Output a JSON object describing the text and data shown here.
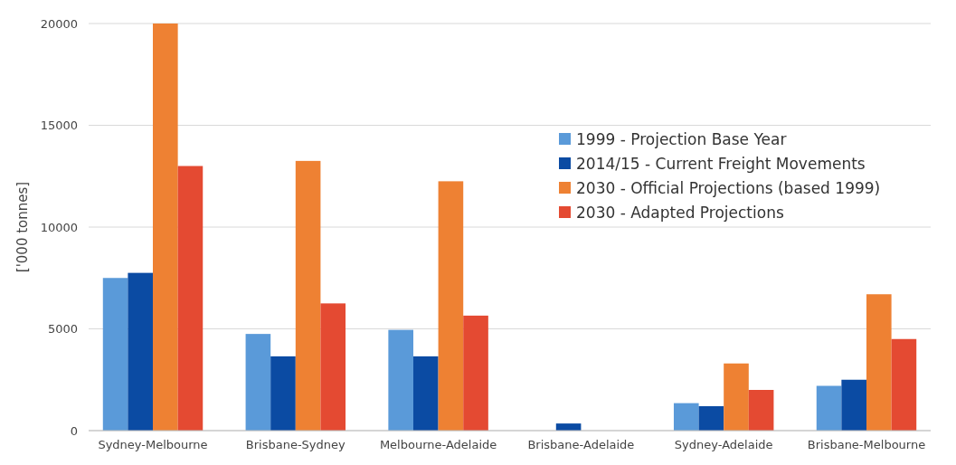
{
  "chart_data": {
    "type": "bar",
    "ylabel": "['000 tonnes]",
    "categories": [
      "Sydney-Melbourne",
      "Brisbane-Sydney",
      "Melbourne-Adelaide",
      "Brisbane-Adelaide",
      "Sydney-Adelaide",
      "Brisbane-Melbourne"
    ],
    "series": [
      {
        "name": "1999 - Projection Base Year",
        "color": "#5a9ad9",
        "values": [
          7500,
          4750,
          4950,
          null,
          1350,
          2200
        ]
      },
      {
        "name": "2014/15 - Current Freight Movements",
        "color": "#0b4ba3",
        "values": [
          7750,
          3650,
          3650,
          350,
          1200,
          2500
        ]
      },
      {
        "name": "2030 - Official Projections (based 1999)",
        "color": "#ee8133",
        "values": [
          20000,
          13250,
          12250,
          null,
          3300,
          6700
        ]
      },
      {
        "name": "2030 - Adapted Projections",
        "color": "#e44a32",
        "values": [
          13000,
          6250,
          5650,
          null,
          2000,
          4500
        ]
      }
    ],
    "ylim": [
      0,
      20000
    ],
    "yticks": [
      0,
      5000,
      10000,
      15000,
      20000
    ],
    "grid": "y",
    "legend": "right"
  }
}
